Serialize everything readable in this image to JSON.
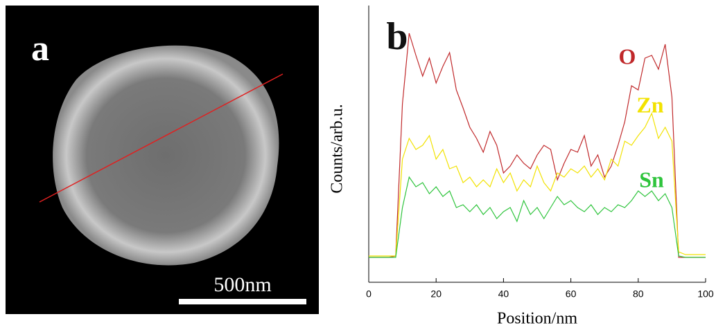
{
  "image_panel": {
    "label": "a",
    "scale_bar": "500nm"
  },
  "chart_data": {
    "type": "line",
    "panel_label": "b",
    "x_label": "Position/nm",
    "y_label": "Counts/arb.u.",
    "xlim": [
      0,
      100
    ],
    "xticks": [
      0,
      20,
      40,
      60,
      80,
      100
    ],
    "ylim": [
      0,
      100
    ],
    "x": [
      0,
      2,
      4,
      6,
      8,
      10,
      12,
      14,
      16,
      18,
      20,
      22,
      24,
      26,
      28,
      30,
      32,
      34,
      36,
      38,
      40,
      42,
      44,
      46,
      48,
      50,
      52,
      54,
      56,
      58,
      60,
      62,
      64,
      66,
      68,
      70,
      72,
      74,
      76,
      78,
      80,
      82,
      84,
      86,
      88,
      90,
      92,
      94,
      96,
      98,
      100
    ],
    "series": [
      {
        "name": "O",
        "color": "#c0282a",
        "values": [
          9,
          9,
          9,
          9,
          9.5,
          64.5,
          90,
          82,
          74.5,
          81,
          72,
          78,
          83,
          69.5,
          63,
          56,
          52,
          47,
          54.5,
          49.5,
          39.5,
          42,
          46,
          43,
          41,
          46,
          49.5,
          48,
          37,
          43,
          48,
          47,
          53,
          42,
          46,
          38,
          42,
          49.5,
          58,
          71,
          69.5,
          81,
          82,
          77,
          86,
          67,
          9,
          9,
          9,
          9,
          9
        ]
      },
      {
        "name": "Zn",
        "color": "#f2e200",
        "values": [
          9.5,
          9.5,
          9.5,
          9.5,
          9.5,
          44.5,
          52,
          48,
          49.5,
          53,
          44.5,
          48,
          41,
          42,
          36,
          38,
          34.5,
          37,
          34.5,
          41,
          36,
          39.5,
          33,
          37,
          34.5,
          42,
          36,
          33,
          39.5,
          38,
          41,
          39.5,
          42,
          38,
          41,
          37,
          44.5,
          42,
          51,
          49.5,
          53,
          56,
          61,
          52,
          56,
          51,
          11,
          10,
          10,
          10,
          10
        ]
      },
      {
        "name": "Sn",
        "color": "#2ec43c",
        "values": [
          9,
          9,
          9,
          9,
          9,
          27,
          38,
          34.5,
          36,
          32,
          34.5,
          31,
          33,
          27,
          28,
          25.5,
          28,
          24.5,
          27,
          23,
          25.5,
          27,
          22,
          29.5,
          24.5,
          27,
          23,
          27,
          31,
          28,
          29.5,
          27,
          25.5,
          28,
          24.5,
          27,
          25.5,
          28,
          27,
          29.5,
          33,
          31,
          33,
          29.5,
          32,
          27,
          9.5,
          9,
          9,
          9,
          9
        ]
      }
    ]
  }
}
